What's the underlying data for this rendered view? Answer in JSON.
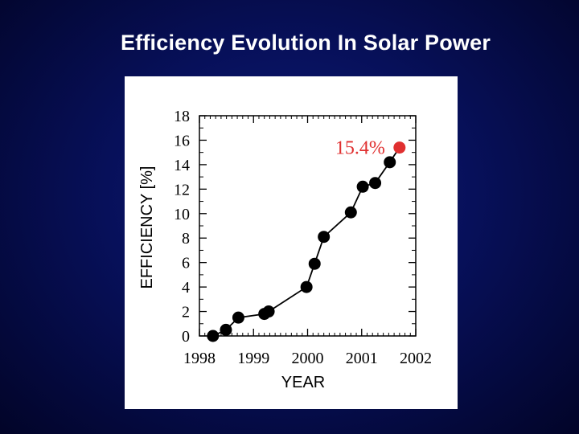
{
  "slide": {
    "title": "Efficiency Evolution In Solar Power"
  },
  "colors": {
    "background": "#07105a",
    "series": "#000000",
    "highlight": "#e03030",
    "panel": "#ffffff"
  },
  "chart_data": {
    "type": "scatter",
    "title": "",
    "xlabel": "YEAR",
    "ylabel": "EFFICIENCY  [%]",
    "xlim": [
      1998,
      2002
    ],
    "ylim": [
      0,
      18
    ],
    "xticks": [
      1998,
      1999,
      2000,
      2001,
      2002
    ],
    "yticks": [
      0,
      2,
      4,
      6,
      8,
      10,
      12,
      14,
      16,
      18
    ],
    "series": [
      {
        "x": [
          1998.25,
          1998.49,
          1998.72,
          1999.2,
          1999.28,
          1999.98,
          2000.13,
          2000.3,
          2000.8,
          2001.02,
          2001.25,
          2001.52
        ],
        "y": [
          0.0,
          0.5,
          1.5,
          1.8,
          2.0,
          4.0,
          5.9,
          8.1,
          10.1,
          12.2,
          12.5,
          14.2
        ],
        "color": "#000000"
      },
      {
        "x": [
          2001.7
        ],
        "y": [
          15.4
        ],
        "color": "#e03030"
      }
    ],
    "annotations": [
      {
        "text": "15.4%",
        "x": 2001.7,
        "y": 15.4,
        "color": "#e03030"
      }
    ],
    "grid": false,
    "legend": "none"
  }
}
